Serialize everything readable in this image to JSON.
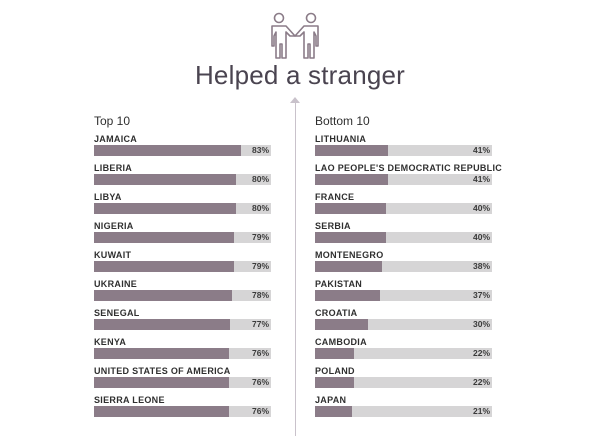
{
  "chart_data": {
    "type": "bar",
    "title": "Helped a stranger",
    "panels": [
      {
        "name": "Top 10",
        "categories": [
          "JAMAICA",
          "LIBERIA",
          "LIBYA",
          "NIGERIA",
          "KUWAIT",
          "UKRAINE",
          "SENEGAL",
          "KENYA",
          "UNITED STATES OF AMERICA",
          "SIERRA LEONE"
        ],
        "values": [
          83,
          80,
          80,
          79,
          79,
          78,
          77,
          76,
          76,
          76
        ],
        "labels": [
          "83%",
          "80%",
          "80%",
          "79%",
          "79%",
          "78%",
          "77%",
          "76%",
          "76%",
          "76%"
        ]
      },
      {
        "name": "Bottom 10",
        "categories": [
          "LITHUANIA",
          "LAO PEOPLE'S DEMOCRATIC REPUBLIC",
          "FRANCE",
          "SERBIA",
          "MONTENEGRO",
          "PAKISTAN",
          "CROATIA",
          "CAMBODIA",
          "POLAND",
          "JAPAN"
        ],
        "values": [
          41,
          41,
          40,
          40,
          38,
          37,
          30,
          22,
          22,
          21
        ],
        "labels": [
          "41%",
          "41%",
          "40%",
          "40%",
          "38%",
          "37%",
          "30%",
          "22%",
          "22%",
          "21%"
        ]
      }
    ],
    "ylim": [
      0,
      100
    ],
    "colors": {
      "bar": "#8b7c88",
      "track": "#d6d5d6"
    }
  },
  "icon": "handshake-people-icon"
}
